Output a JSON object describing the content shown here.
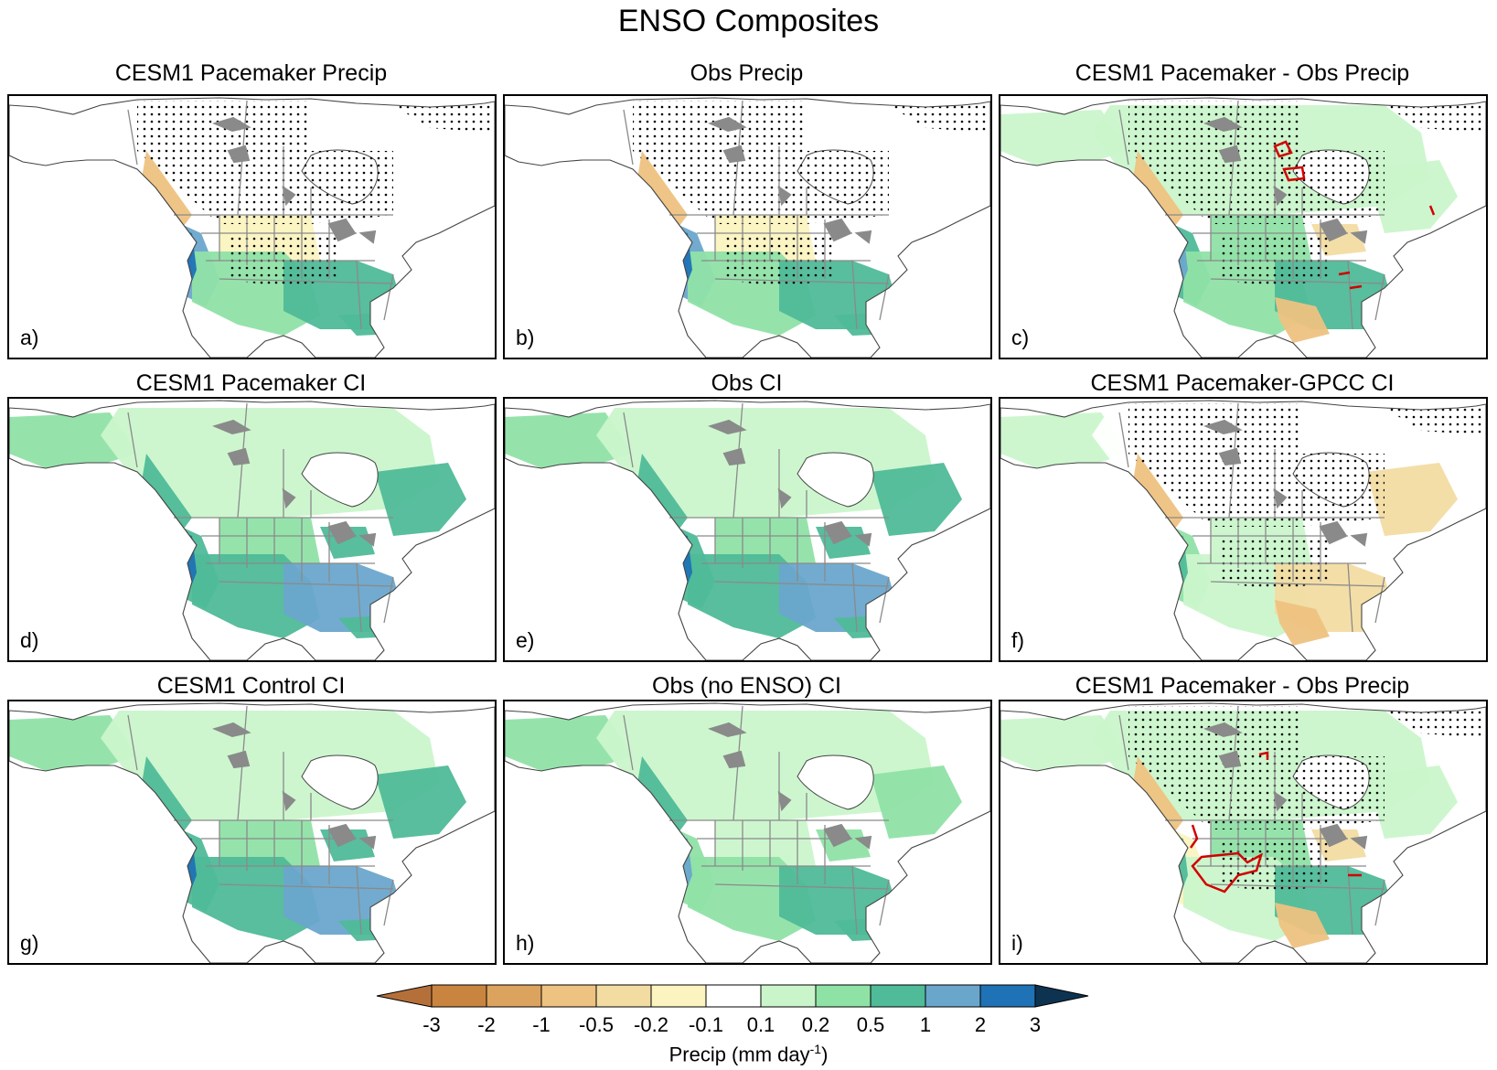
{
  "title": "ENSO Composites",
  "panels": [
    {
      "id": "a",
      "title": "CESM1 Pacemaker Precip",
      "label": "a)",
      "style": "diff"
    },
    {
      "id": "b",
      "title": "Obs Precip",
      "label": "b)",
      "style": "diff"
    },
    {
      "id": "c",
      "title": "CESM1 Pacemaker - Obs Precip",
      "label": "c)",
      "style": "diffc"
    },
    {
      "id": "d",
      "title": "CESM1 Pacemaker CI",
      "label": "d)",
      "style": "ci"
    },
    {
      "id": "e",
      "title": "Obs CI",
      "label": "e)",
      "style": "ci"
    },
    {
      "id": "f",
      "title": "CESM1 Pacemaker-GPCC CI",
      "label": "f)",
      "style": "cidiff"
    },
    {
      "id": "g",
      "title": "CESM1 Control CI",
      "label": "g)",
      "style": "ci"
    },
    {
      "id": "h",
      "title": "Obs (no ENSO) CI",
      "label": "h)",
      "style": "ci2"
    },
    {
      "id": "i",
      "title": "CESM1 Pacemaker - Obs Precip",
      "label": "i)",
      "style": "diffi"
    }
  ],
  "colorbar": {
    "levels": [
      "-3",
      "-2",
      "-1",
      "-0.5",
      "-0.2",
      "-0.1",
      "0.1",
      "0.2",
      "0.5",
      "1",
      "2",
      "3"
    ],
    "colors": [
      "#c98540",
      "#dca35e",
      "#eec281",
      "#f2dca2",
      "#fbf3c0",
      "#ffffff",
      "#caf5cb",
      "#8fe2a6",
      "#4fbb98",
      "#6aa6cc",
      "#1f72b5"
    ],
    "under_color": "#b5703a",
    "over_color": "#0e3350",
    "label": "Precip (mm day",
    "label_sup": "-1",
    "label_end": ")"
  },
  "colors": {
    "land": "#ffffff",
    "coast": "#444444",
    "border": "#8a8a8a",
    "lake": "#8a8a8a",
    "stipple": "#000000",
    "contour": "#d10000"
  }
}
